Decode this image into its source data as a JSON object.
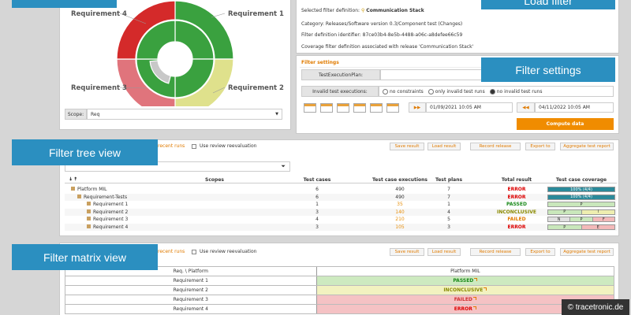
{
  "callouts": {
    "load_filter": "Load filter",
    "filter_settings": "Filter settings",
    "filter_tree_view": "Filter tree view",
    "filter_matrix_view": "Filter matrix view"
  },
  "sunburst": {
    "labels": [
      "Requirement 4",
      "Requirement 1",
      "Requirement 3",
      "Requirement 2"
    ],
    "scope_label": "Scope:",
    "scope_value": "Req"
  },
  "filter_info": {
    "selected": "Selected filter definition:",
    "selected_name": "Communication Stack",
    "category": "Category: Releases/Software version 0.3/Component test (Changes)",
    "identifier": "Filter definition identifier: 87ce03b4-8e5b-4488-a06c-a8defee66c59",
    "coverage": "Coverage filter definition associated with release 'Communication Stack'"
  },
  "filter_settings": {
    "title": "Filter settings",
    "plan_label": "TestExecutionPlan:",
    "invalid_label": "Invalid test executions:",
    "options": [
      "no constraints",
      "only invalid test runs",
      "no invalid test runs"
    ],
    "date_from": "01/09/2021 10:05 AM",
    "date_to": "04/11/2022 10:05 AM",
    "compute": "Compute data"
  },
  "toolbar": {
    "recent": "recent runs",
    "review": "Use review reevaluation",
    "save": "Save result",
    "load": "Load result",
    "record": "Record release",
    "export": "Export to",
    "aggregate": "Aggregate test report"
  },
  "tree": {
    "columns": [
      "Scopes",
      "Test cases",
      "Test case executions",
      "Test plans",
      "Total result",
      "Test case coverage"
    ],
    "rows": [
      {
        "name": "Platform MIL",
        "test_cases": 6,
        "executions": 490,
        "test_plans": 7,
        "result": "ERROR",
        "coverage": [
          "100% (4/4)"
        ]
      },
      {
        "name": "Requirement-Tests",
        "test_cases": 6,
        "executions": 490,
        "test_plans": 7,
        "result": "ERROR",
        "coverage": [
          "100% (4/4)"
        ]
      },
      {
        "name": "Requirement 1",
        "test_cases": 1,
        "executions": 35,
        "test_plans": 1,
        "result": "PASSED",
        "coverage": [
          "P"
        ]
      },
      {
        "name": "Requirement 2",
        "test_cases": 3,
        "executions": 140,
        "test_plans": 4,
        "result": "INCONCLUSIVE",
        "coverage": [
          "P",
          "I"
        ]
      },
      {
        "name": "Requirement 3",
        "test_cases": 4,
        "executions": 210,
        "test_plans": 5,
        "result": "FAILED",
        "coverage": [
          "N",
          "P",
          "F"
        ]
      },
      {
        "name": "Requirement 4",
        "test_cases": 3,
        "executions": 105,
        "test_plans": 3,
        "result": "ERROR",
        "coverage": [
          "P",
          "E"
        ]
      }
    ]
  },
  "matrix": {
    "columns": [
      "Req. \\ Platform",
      "Platform MIL"
    ],
    "rows": [
      [
        "Requirement 1",
        "PASSED"
      ],
      [
        "Requirement 2",
        "INCONCLUSIVE"
      ],
      [
        "Requirement 3",
        "FAILED"
      ],
      [
        "Requirement 4",
        "ERROR"
      ]
    ]
  },
  "watermark": "© tracetronic.de"
}
